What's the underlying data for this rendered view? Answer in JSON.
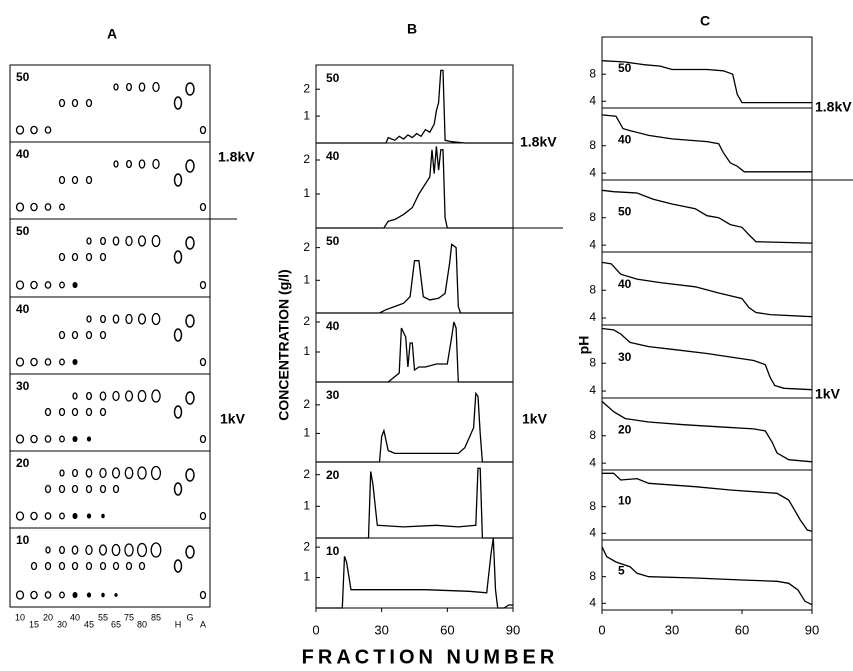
{
  "figure": {
    "xlabel": "FRACTION NUMBER"
  },
  "panel_a": {
    "title": "A",
    "rows": [
      "50",
      "40",
      "50",
      "40",
      "30",
      "20",
      "10"
    ],
    "lanes": [
      "10",
      "15",
      "20",
      "30",
      "40",
      "45",
      "55",
      "65",
      "75",
      "80",
      "85",
      "H",
      "G",
      "A"
    ],
    "voltage_high": "1.8kV",
    "voltage_low": "1kV"
  },
  "panel_b": {
    "title": "B",
    "ylabel": "CONCENTRATION (g/l)",
    "voltage_high": "1.8kV",
    "voltage_low": "1kV"
  },
  "panel_c": {
    "title": "C",
    "ylabel": "pH",
    "voltage_high": "1.8kV",
    "voltage_low": "1kV"
  },
  "chart_data": [
    {
      "type": "line",
      "label": "50",
      "xlim": [
        0,
        90
      ],
      "ylim": [
        0,
        2.9
      ],
      "yticks": [
        1,
        2
      ],
      "x": [
        0,
        32,
        33,
        36,
        38,
        40,
        42,
        44,
        46,
        48,
        50,
        52,
        54,
        55,
        56,
        57,
        58,
        59,
        62,
        68,
        90
      ],
      "series": [
        {
          "color": "#000000",
          "values": [
            0,
            0,
            0.2,
            0.1,
            0.25,
            0.15,
            0.3,
            0.2,
            0.35,
            0.25,
            0.5,
            0.4,
            0.7,
            1.2,
            1.5,
            2.7,
            2.7,
            0.1,
            0.05,
            0,
            0
          ]
        }
      ]
    },
    {
      "type": "line",
      "label": "40",
      "xlim": [
        0,
        90
      ],
      "ylim": [
        0,
        2.5
      ],
      "yticks": [
        1,
        2
      ],
      "x": [
        0,
        31,
        33,
        36,
        40,
        44,
        47,
        50,
        52,
        53,
        54,
        55,
        56,
        57,
        58,
        59,
        60,
        90
      ],
      "series": [
        {
          "color": "#000000",
          "values": [
            0,
            0,
            0.2,
            0.25,
            0.4,
            0.6,
            1.0,
            1.3,
            1.5,
            2.3,
            1.6,
            2.4,
            1.7,
            2.3,
            2.3,
            0.3,
            0,
            0
          ]
        }
      ]
    },
    {
      "type": "line",
      "label": "50",
      "xlim": [
        0,
        90
      ],
      "ylim": [
        0,
        2.6
      ],
      "yticks": [
        1,
        2
      ],
      "x": [
        0,
        29,
        32,
        36,
        40,
        43,
        45,
        47,
        49,
        52,
        56,
        59,
        61,
        62,
        64,
        65,
        66,
        90
      ],
      "series": [
        {
          "color": "#000000",
          "values": [
            0,
            0,
            0.1,
            0.2,
            0.3,
            0.5,
            1.6,
            1.6,
            0.5,
            0.4,
            0.45,
            0.6,
            1.5,
            2.1,
            2.0,
            0.2,
            0,
            0
          ]
        }
      ]
    },
    {
      "type": "line",
      "label": "40",
      "xlim": [
        0,
        90
      ],
      "ylim": [
        0,
        2.3
      ],
      "yticks": [
        1,
        2
      ],
      "x": [
        0,
        33,
        38,
        39,
        41,
        42,
        43,
        44,
        45,
        47,
        50,
        55,
        60,
        62,
        63,
        64,
        65,
        90
      ],
      "series": [
        {
          "color": "#000000",
          "values": [
            0,
            0,
            0.3,
            1.8,
            1.5,
            0.5,
            1.3,
            1.3,
            0.4,
            0.5,
            0.5,
            0.6,
            0.6,
            1.5,
            2.0,
            1.8,
            0,
            0
          ]
        }
      ]
    },
    {
      "type": "line",
      "label": "30",
      "xlim": [
        0,
        90
      ],
      "ylim": [
        0,
        2.8
      ],
      "yticks": [
        1,
        2
      ],
      "x": [
        0,
        29,
        30,
        31,
        33,
        36,
        45,
        55,
        65,
        68,
        72,
        73,
        74,
        75,
        76,
        90
      ],
      "series": [
        {
          "color": "#000000",
          "values": [
            0,
            0,
            0.9,
            1.1,
            0.4,
            0.3,
            0.3,
            0.3,
            0.3,
            0.5,
            1.2,
            2.4,
            2.3,
            1.0,
            0,
            0
          ]
        }
      ]
    },
    {
      "type": "line",
      "label": "20",
      "xlim": [
        0,
        90
      ],
      "ylim": [
        0,
        2.4
      ],
      "yticks": [
        1,
        2
      ],
      "x": [
        0,
        24,
        25,
        26,
        28,
        40,
        55,
        65,
        73,
        74,
        75,
        76,
        90
      ],
      "series": [
        {
          "color": "#000000",
          "values": [
            0,
            0,
            2.1,
            1.7,
            0.4,
            0.35,
            0.4,
            0.35,
            0.4,
            2.2,
            2.2,
            0,
            0
          ]
        }
      ]
    },
    {
      "type": "line",
      "label": "10",
      "xlim": [
        0,
        90
      ],
      "ylim": [
        0,
        2.3
      ],
      "yticks": [
        1,
        2
      ],
      "xticks": [
        0,
        30,
        60,
        90
      ],
      "x": [
        0,
        12,
        13,
        14,
        16,
        30,
        50,
        70,
        78,
        80,
        81,
        82,
        83,
        86,
        88,
        90
      ],
      "series": [
        {
          "color": "#000000",
          "values": [
            0,
            0,
            1.7,
            1.5,
            0.6,
            0.6,
            0.6,
            0.55,
            0.5,
            1.8,
            2.3,
            0.6,
            0,
            0,
            0.1,
            0.1
          ]
        }
      ]
    },
    {
      "type": "line",
      "label": "50",
      "xlim": [
        0,
        90
      ],
      "ylim": [
        3,
        13.5
      ],
      "yticks": [
        4,
        8
      ],
      "x": [
        0,
        10,
        18,
        25,
        30,
        45,
        52,
        56,
        58,
        60,
        90
      ],
      "series": [
        {
          "color": "#000000",
          "values": [
            10,
            9.8,
            9.4,
            9.2,
            8.7,
            8.7,
            8.5,
            8.0,
            5,
            3.8,
            3.8
          ]
        }
      ]
    },
    {
      "type": "line",
      "label": "40",
      "xlim": [
        0,
        90
      ],
      "ylim": [
        3,
        13.5
      ],
      "yticks": [
        4,
        8
      ],
      "x": [
        0,
        6,
        9,
        12,
        20,
        30,
        45,
        50,
        52,
        55,
        58,
        61,
        90
      ],
      "series": [
        {
          "color": "#000000",
          "values": [
            12.5,
            12.3,
            10.5,
            10.2,
            9.5,
            9.0,
            8.6,
            8.3,
            7,
            5.5,
            5,
            4.2,
            4.2
          ]
        }
      ]
    },
    {
      "type": "line",
      "label": "50",
      "xlim": [
        0,
        90
      ],
      "ylim": [
        3,
        13.5
      ],
      "yticks": [
        4,
        8
      ],
      "x": [
        0,
        5,
        15,
        22,
        30,
        40,
        45,
        50,
        55,
        60,
        63,
        66,
        90
      ],
      "series": [
        {
          "color": "#000000",
          "values": [
            12,
            11.8,
            11.6,
            10.7,
            10,
            9.3,
            8.3,
            8.0,
            7.0,
            6.6,
            5.5,
            4.5,
            4.3
          ]
        }
      ]
    },
    {
      "type": "line",
      "label": "40",
      "xlim": [
        0,
        90
      ],
      "ylim": [
        3,
        13.5
      ],
      "yticks": [
        4,
        8
      ],
      "x": [
        0,
        4,
        8,
        15,
        25,
        40,
        50,
        55,
        60,
        63,
        66,
        72,
        90
      ],
      "series": [
        {
          "color": "#000000",
          "values": [
            12,
            11.8,
            10.3,
            9.6,
            9.1,
            8.5,
            7.6,
            7.2,
            6.8,
            5.5,
            4.8,
            4.5,
            4.2
          ]
        }
      ]
    },
    {
      "type": "line",
      "label": "30",
      "xlim": [
        0,
        90
      ],
      "ylim": [
        3,
        13.5
      ],
      "yticks": [
        4,
        8
      ],
      "x": [
        0,
        5,
        8,
        12,
        20,
        30,
        45,
        55,
        65,
        70,
        72,
        74,
        78,
        90
      ],
      "series": [
        {
          "color": "#000000",
          "values": [
            13,
            12.8,
            12.2,
            11,
            10.4,
            10,
            9.4,
            8.9,
            8.4,
            7.8,
            6,
            4.8,
            4.4,
            4.2
          ]
        }
      ]
    },
    {
      "type": "line",
      "label": "20",
      "xlim": [
        0,
        90
      ],
      "ylim": [
        3,
        13.5
      ],
      "yticks": [
        4,
        8
      ],
      "x": [
        0,
        5,
        10,
        20,
        35,
        50,
        65,
        70,
        73,
        75,
        80,
        90
      ],
      "series": [
        {
          "color": "#000000",
          "values": [
            13,
            11.5,
            10.5,
            10,
            9.6,
            9.3,
            9,
            8.7,
            7,
            5.5,
            4.5,
            4.2
          ]
        }
      ]
    },
    {
      "type": "line",
      "label": "10",
      "xlim": [
        0,
        90
      ],
      "ylim": [
        3,
        13.5
      ],
      "yticks": [
        4,
        8
      ],
      "x": [
        0,
        5,
        8,
        15,
        20,
        40,
        55,
        75,
        80,
        85,
        88,
        90
      ],
      "series": [
        {
          "color": "#000000",
          "values": [
            13,
            13,
            12,
            12.2,
            11.5,
            11,
            10.5,
            10,
            9,
            6,
            4.5,
            4.3
          ]
        }
      ]
    },
    {
      "type": "line",
      "label": "5",
      "xlim": [
        0,
        90
      ],
      "ylim": [
        3,
        13.5
      ],
      "yticks": [
        4,
        8
      ],
      "xticks": [
        0,
        30,
        60,
        90
      ],
      "x": [
        0,
        2,
        6,
        12,
        15,
        20,
        40,
        60,
        75,
        80,
        84,
        87,
        90
      ],
      "series": [
        {
          "color": "#000000",
          "values": [
            12.5,
            11,
            10.2,
            9.5,
            8.5,
            8,
            7.8,
            7.5,
            7.3,
            7,
            6,
            4.3,
            3.8
          ]
        }
      ]
    }
  ]
}
